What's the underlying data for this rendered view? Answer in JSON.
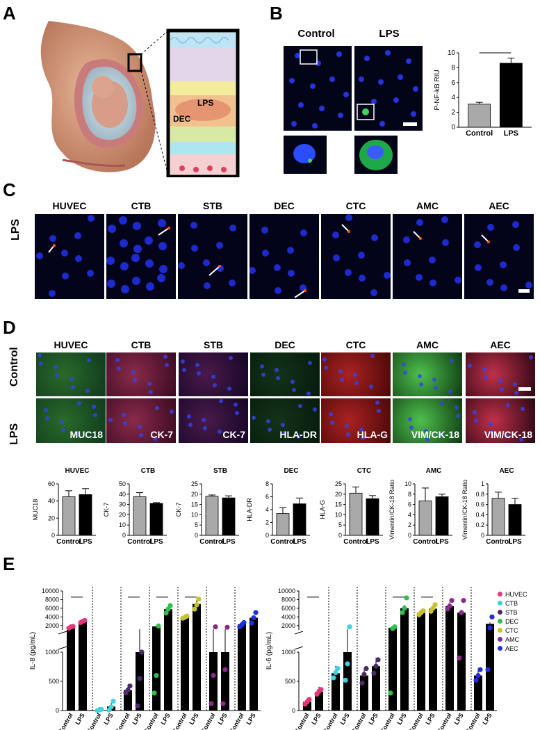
{
  "panels": {
    "A": "A",
    "B": "B",
    "C": "C",
    "D": "D",
    "E": "E"
  },
  "panelA": {
    "lps_label": "LPS",
    "dec_label": "DEC"
  },
  "panelB": {
    "control_title": "Control",
    "lps_title": "LPS"
  },
  "panelC": {
    "row_label": "LPS",
    "columns": [
      "HUVEC",
      "CTB",
      "STB",
      "DEC",
      "CTC",
      "AMC",
      "AEC"
    ]
  },
  "panelD": {
    "rows": [
      "Control",
      "LPS"
    ],
    "columns": [
      "HUVEC",
      "CTB",
      "STB",
      "DEC",
      "CTC",
      "AMC",
      "AEC"
    ],
    "markers": [
      "MUC18",
      "CK-7",
      "CK-7",
      "HLA-DR",
      "HLA-G",
      "VIM/CK-18",
      "VIM/CK-18"
    ]
  },
  "colors": {
    "control_bar": "#a9a9a9",
    "lps_bar": "#000000",
    "huvec": "#e8357a",
    "ctb": "#3fd3e0",
    "stb": "#4a2a6a",
    "dec": "#2ec04a",
    "ctc": "#c7c22a",
    "amc": "#8a2a8a",
    "aec": "#1f2fe0"
  },
  "chart_data": [
    {
      "id": "B",
      "type": "bar",
      "categories": [
        "Control",
        "LPS"
      ],
      "values": [
        3.1,
        8.6
      ],
      "errors": [
        0.25,
        0.7
      ],
      "ylabel": "P-NF-kB RIU",
      "ylim": [
        0,
        10
      ],
      "yticks": [
        0,
        2,
        4,
        6,
        8,
        10
      ],
      "significance": true
    },
    {
      "id": "D-HUVEC",
      "type": "bar",
      "title": "HUVEC",
      "categories": [
        "Control",
        "LPS"
      ],
      "values": [
        45,
        47.5
      ],
      "errors": [
        7,
        7
      ],
      "ylabel": "MUC18",
      "ylim": [
        0,
        60
      ],
      "yticks": [
        0,
        20,
        40,
        60
      ]
    },
    {
      "id": "D-CTB",
      "type": "bar",
      "title": "CTB",
      "categories": [
        "Control",
        "LPS"
      ],
      "values": [
        37.5,
        31
      ],
      "errors": [
        4,
        0.8
      ],
      "ylabel": "CK-7",
      "ylim": [
        0,
        50
      ],
      "yticks": [
        0,
        10,
        20,
        30,
        40,
        50
      ]
    },
    {
      "id": "D-STB",
      "type": "bar",
      "title": "STB",
      "categories": [
        "Control",
        "LPS"
      ],
      "values": [
        19,
        18.2
      ],
      "errors": [
        0.6,
        1
      ],
      "ylabel": "CK-7",
      "ylim": [
        0,
        25
      ],
      "yticks": [
        0,
        5,
        10,
        15,
        20,
        25
      ]
    },
    {
      "id": "D-DEC",
      "type": "bar",
      "title": "DEC",
      "categories": [
        "Control",
        "LPS"
      ],
      "values": [
        3.4,
        4.9
      ],
      "errors": [
        0.9,
        0.9
      ],
      "ylabel": "HLA-DR",
      "ylim": [
        0,
        8
      ],
      "yticks": [
        0,
        2,
        4,
        6,
        8
      ]
    },
    {
      "id": "D-CTC",
      "type": "bar",
      "title": "CTC",
      "categories": [
        "Control",
        "LPS"
      ],
      "values": [
        20.5,
        17.8
      ],
      "errors": [
        3,
        1.5
      ],
      "ylabel": "HLA-G",
      "ylim": [
        0,
        25
      ],
      "yticks": [
        0,
        5,
        10,
        15,
        20,
        25
      ]
    },
    {
      "id": "D-AMC",
      "type": "bar",
      "title": "AMC",
      "categories": [
        "Control",
        "LPS"
      ],
      "values": [
        6.7,
        7.5
      ],
      "errors": [
        2.5,
        0.5
      ],
      "ylabel": "Vimentin/CK-18 Ratio",
      "ylim": [
        0,
        10
      ],
      "yticks": [
        0,
        2,
        4,
        6,
        8,
        10
      ]
    },
    {
      "id": "D-AEC",
      "type": "bar",
      "title": "AEC",
      "categories": [
        "Control",
        "LPS"
      ],
      "values": [
        0.72,
        0.6
      ],
      "errors": [
        0.12,
        0.12
      ],
      "ylabel": "Vimentin/CK-18 Ratio",
      "ylim": [
        0,
        1
      ],
      "yticks": [
        0.0,
        0.2,
        0.4,
        0.6,
        0.8,
        1.0
      ]
    },
    {
      "id": "E-IL8",
      "type": "bar",
      "ylabel": "IL-8 (pg/mL)",
      "y_break": 1000,
      "lower_ticks": [
        0,
        500,
        1000
      ],
      "upper_ticks": [
        2000,
        4000,
        6000,
        8000,
        10000
      ],
      "groups": [
        "HUVEC",
        "CTB",
        "STB",
        "DEC",
        "CTC",
        "AMC",
        "AEC"
      ],
      "categories": [
        "Control",
        "LPS"
      ],
      "series": [
        {
          "name": "HUVEC",
          "values": [
            1600,
            2900
          ],
          "points": [
            [
              1400,
              1700,
              1800
            ],
            [
              2700,
              3000,
              3200
            ]
          ]
        },
        {
          "name": "CTB",
          "values": [
            10,
            70
          ],
          "points": [
            [
              0,
              10,
              20
            ],
            [
              10,
              60,
              160
            ]
          ]
        },
        {
          "name": "STB",
          "values": [
            350,
            1000
          ],
          "points": [
            [
              300,
              350,
              420
            ],
            [
              80,
              550,
              1000
            ]
          ]
        },
        {
          "name": "DEC",
          "values": [
            1800,
            5800
          ],
          "points": [
            [
              300,
              600,
              1900
            ],
            [
              4900,
              5800,
              6600
            ]
          ]
        },
        {
          "name": "CTC",
          "values": [
            4000,
            7000
          ],
          "points": [
            [
              3700,
              3900,
              4200
            ],
            [
              5800,
              6800,
              8100
            ]
          ]
        },
        {
          "name": "AMC",
          "values": [
            1000,
            1000
          ],
          "points": [
            [
              120,
              600,
              1700
            ],
            [
              120,
              700,
              1600
            ]
          ]
        },
        {
          "name": "AEC",
          "values": [
            2300,
            3800
          ],
          "points": [
            [
              1700,
              2200,
              2700
            ],
            [
              2600,
              3800,
              5000
            ]
          ]
        }
      ],
      "significant_groups": [
        "HUVEC",
        "STB",
        "DEC",
        "CTC"
      ]
    },
    {
      "id": "E-IL6",
      "type": "bar",
      "ylabel": "IL-6 (pg/mL)",
      "y_break": 1000,
      "lower_ticks": [
        0,
        500,
        1000
      ],
      "upper_ticks": [
        2000,
        4000,
        6000,
        8000,
        10000
      ],
      "groups": [
        "HUVEC",
        "CTB",
        "STB",
        "DEC",
        "CTC",
        "AMC",
        "AEC"
      ],
      "categories": [
        "Control",
        "LPS"
      ],
      "series": [
        {
          "name": "HUVEC",
          "values": [
            150,
            320
          ],
          "points": [
            [
              110,
              150,
              190
            ],
            [
              280,
              330,
              360
            ]
          ]
        },
        {
          "name": "CTB",
          "values": [
            640,
            1000
          ],
          "points": [
            [
              560,
              650,
              720
            ],
            [
              520,
              800,
              1700
            ]
          ]
        },
        {
          "name": "STB",
          "values": [
            600,
            760
          ],
          "points": [
            [
              470,
              620,
              720
            ],
            [
              640,
              760,
              870
            ]
          ]
        },
        {
          "name": "DEC",
          "values": [
            1500,
            6000
          ],
          "points": [
            [
              300,
              1300,
              1700
            ],
            [
              5000,
              6000,
              8400
            ]
          ]
        },
        {
          "name": "CTC",
          "values": [
            5000,
            5900
          ],
          "points": [
            [
              4500,
              5000,
              5400
            ],
            [
              5300,
              6000,
              6800
            ]
          ]
        },
        {
          "name": "AMC",
          "values": [
            6500,
            5000
          ],
          "points": [
            [
              5800,
              6500,
              7800
            ],
            [
              900,
              5000,
              7800
            ]
          ]
        },
        {
          "name": "AEC",
          "values": [
            600,
            2400
          ],
          "points": [
            [
              520,
              600,
              700
            ],
            [
              700,
              1500,
              4000
            ]
          ]
        }
      ],
      "significant_groups": [
        "HUVEC",
        "DEC",
        "CTC"
      ]
    }
  ]
}
